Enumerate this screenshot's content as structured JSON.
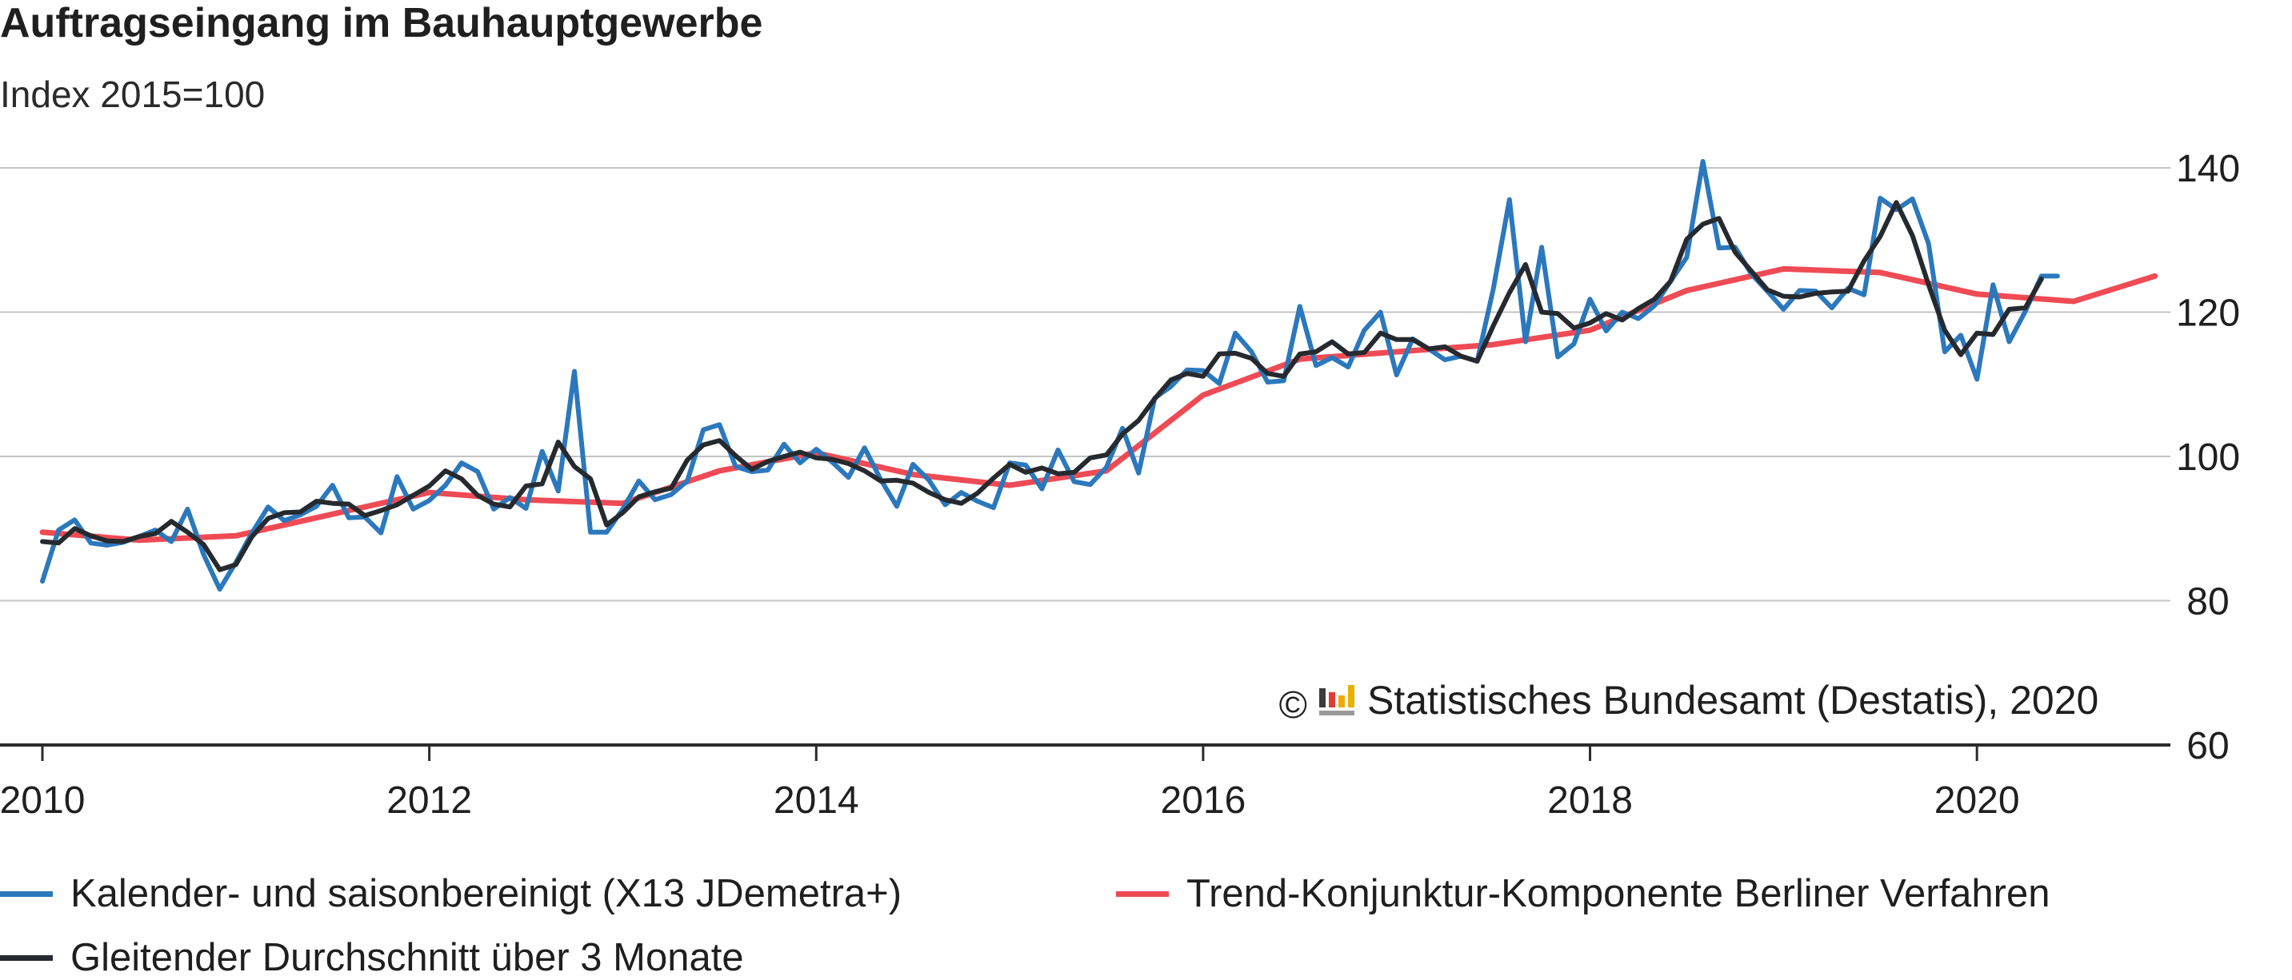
{
  "chart_data": {
    "type": "line",
    "title": "Auftragseingang im Bauhauptgewerbe",
    "subtitle": "Index 2015=100",
    "copyright": "© Statistisches Bundesamt (Destatis), 2020",
    "copyright_prefix": "©",
    "copyright_text": "Statistisches Bundesamt (Destatis), 2020",
    "xlabel": "",
    "ylabel": "",
    "xlim": [
      2010,
      2021
    ],
    "ylim": [
      60,
      140
    ],
    "x_ticks": [
      2010,
      2012,
      2014,
      2016,
      2018,
      2020
    ],
    "y_ticks": [
      60,
      80,
      100,
      120,
      140
    ],
    "y_tick_labels": [
      "60",
      "80",
      "100",
      "120",
      "140"
    ],
    "x_tick_labels": [
      "2010",
      "2012",
      "2014",
      "2016",
      "2018",
      "2020"
    ],
    "grid": "horizontal",
    "y_axis_position": "right",
    "legend_position": "bottom",
    "series": [
      {
        "name": "Kalender- und saisonbereinigt (X13 JDemetra+)",
        "color": "#2b78bd",
        "x_start": 2010.0,
        "x_step": 0.083333,
        "values": [
          82.7,
          89.8,
          91.2,
          88.0,
          87.7,
          88.1,
          88.9,
          89.8,
          88.2,
          92.7,
          86.4,
          81.6,
          85.3,
          89.4,
          93.0,
          91.1,
          91.9,
          93.1,
          96.0,
          91.5,
          91.6,
          89.4,
          97.2,
          92.7,
          93.9,
          96.0,
          99.1,
          97.9,
          92.7,
          94.3,
          92.8,
          100.7,
          95.2,
          111.8,
          89.5,
          89.5,
          92.7,
          96.6,
          94.0,
          94.7,
          96.6,
          103.7,
          104.4,
          98.6,
          97.9,
          98.1,
          101.7,
          99.1,
          101.0,
          99.2,
          97.1,
          101.2,
          96.8,
          93.1,
          98.9,
          96.7,
          93.3,
          95.0,
          93.8,
          92.9,
          99.1,
          98.8,
          95.5,
          100.9,
          96.5,
          96.1,
          98.5,
          103.9,
          97.7,
          108.1,
          109.7,
          112.0,
          111.9,
          110.1,
          117.1,
          114.5,
          110.3,
          110.5,
          120.8,
          112.6,
          113.7,
          112.4,
          117.5,
          120.0,
          111.3,
          116.3,
          114.9,
          113.4,
          113.9,
          113.2,
          123.2,
          135.6,
          115.9,
          129.0,
          113.8,
          115.6,
          121.8,
          117.4,
          120.0,
          119.1,
          120.9,
          124.3,
          127.6,
          140.9,
          128.9,
          129.0,
          125.3,
          122.9,
          120.4,
          123.0,
          122.9,
          120.6,
          123.3,
          122.4,
          135.8,
          134.2,
          135.7,
          129.5,
          114.5,
          116.8,
          110.7,
          123.8,
          115.9,
          120.1,
          125.0,
          125.0
        ]
      },
      {
        "name": "Trend-Konjunktur-Komponente Berliner Verfahren",
        "color": "#ef4b55",
        "x": [
          2010.0,
          2010.5,
          2011.0,
          2011.5,
          2012.0,
          2012.5,
          2013.0,
          2013.5,
          2014.0,
          2014.5,
          2015.0,
          2015.5,
          2016.0,
          2016.5,
          2017.0,
          2017.5,
          2018.0,
          2018.5,
          2019.0,
          2019.5,
          2020.0,
          2020.5,
          2020.92
        ],
        "values": [
          89.5,
          88.4,
          89.0,
          92.0,
          95.0,
          94.0,
          93.5,
          98.0,
          100.5,
          97.5,
          96.0,
          98.0,
          108.5,
          113.5,
          114.5,
          115.5,
          117.5,
          123.0,
          126.0,
          125.5,
          122.5,
          121.5,
          125.0
        ]
      },
      {
        "name": "Gleitender Durchschnitt über 3 Monate",
        "color": "#262a2f",
        "x_start": 2010.0,
        "x_step": 0.083333,
        "values": [
          88.2,
          88.0,
          90.0,
          89.0,
          88.3,
          88.2,
          88.9,
          89.3,
          91.0,
          89.5,
          87.8,
          84.3,
          85.0,
          88.9,
          91.4,
          92.2,
          92.3,
          93.8,
          93.5,
          93.4,
          91.8,
          92.5,
          93.3,
          94.6,
          95.9,
          98.0,
          96.9,
          94.6,
          93.4,
          93.0,
          95.9,
          96.2,
          102.0,
          98.6,
          96.9,
          90.5,
          92.2,
          94.4,
          95.1,
          95.6,
          99.5,
          101.6,
          102.2,
          100.1,
          98.2,
          99.3,
          100.0,
          100.6,
          99.8,
          99.6,
          99.0,
          98.0,
          96.6,
          96.7,
          96.3,
          95.0,
          94.0,
          93.5,
          94.9,
          97.0,
          98.9,
          97.8,
          98.4,
          97.6,
          97.8,
          99.8,
          100.2,
          103.1,
          105.0,
          108.0,
          110.6,
          111.5,
          111.1,
          114.2,
          114.3,
          113.6,
          111.5,
          111.1,
          114.2,
          114.5,
          115.9,
          114.2,
          114.4,
          117.1,
          116.2,
          116.2,
          114.9,
          115.2,
          113.9,
          113.2,
          118.1,
          122.7,
          126.6,
          120.0,
          119.8,
          117.8,
          118.5,
          119.8,
          118.9,
          120.5,
          121.8,
          124.3,
          130.1,
          132.2,
          133.0,
          128.3,
          125.7,
          123.1,
          122.2,
          122.1,
          122.6,
          122.8,
          122.9,
          127.1,
          130.5,
          135.2,
          130.6,
          123.8,
          117.5,
          114.1,
          117.1,
          116.9,
          120.4,
          120.6,
          124.6
        ]
      }
    ]
  }
}
